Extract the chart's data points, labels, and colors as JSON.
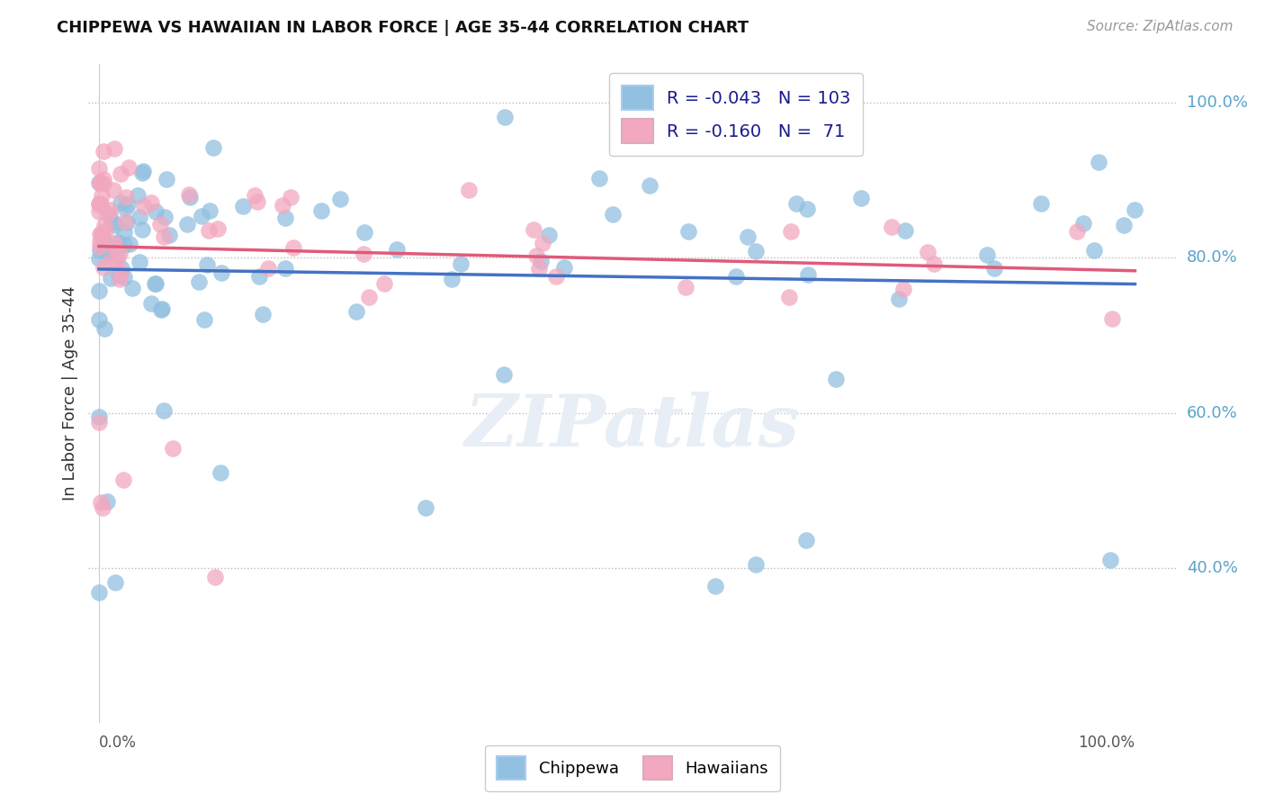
{
  "title": "CHIPPEWA VS HAWAIIAN IN LABOR FORCE | AGE 35-44 CORRELATION CHART",
  "source": "Source: ZipAtlas.com",
  "ylabel": "In Labor Force | Age 35-44",
  "chippewa_R": -0.043,
  "chippewa_N": 103,
  "hawaiian_R": -0.16,
  "hawaiian_N": 71,
  "chippewa_color": "#92C0E0",
  "hawaiian_color": "#F2A8BF",
  "chippewa_line_color": "#4472C4",
  "hawaiian_line_color": "#E05A7A",
  "background_color": "#FFFFFF",
  "grid_color": "#CCCCCC",
  "right_label_color": "#5BA3C9",
  "ytick_vals": [
    0.4,
    0.6,
    0.8,
    1.0
  ],
  "ytick_labels": [
    "40.0%",
    "60.0%",
    "80.0%",
    "100.0%"
  ],
  "ymin": 0.2,
  "ymax": 1.05,
  "xmin": -0.01,
  "xmax": 1.04
}
